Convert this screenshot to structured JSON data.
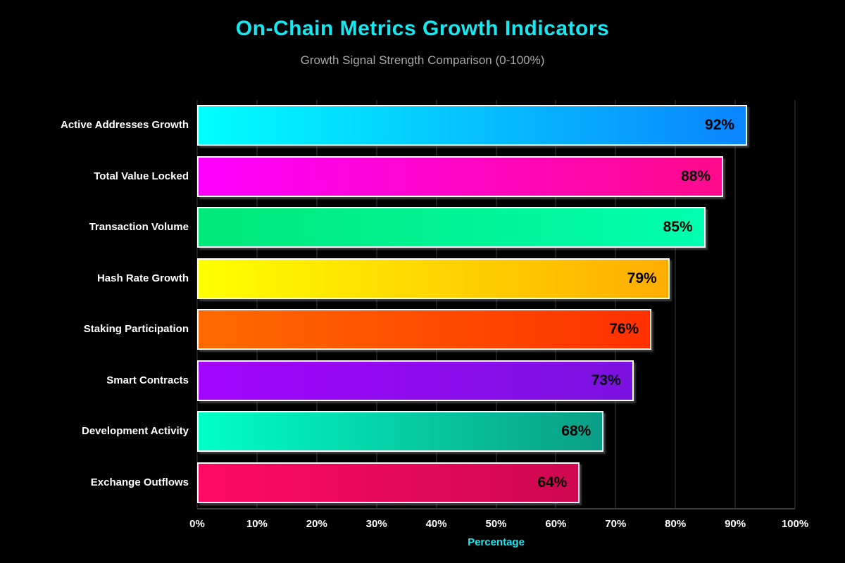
{
  "title": "On-Chain Metrics Growth Indicators",
  "subtitle": "Growth Signal Strength Comparison (0-100%)",
  "chart_data": {
    "type": "bar",
    "orientation": "horizontal",
    "title": "On-Chain Metrics Growth Indicators",
    "subtitle": "Growth Signal Strength Comparison (0-100%)",
    "categories": [
      "Active Addresses Growth",
      "Total Value Locked",
      "Transaction Volume",
      "Hash Rate Growth",
      "Staking Participation",
      "Smart Contracts",
      "Development Activity",
      "Exchange Outflows"
    ],
    "values": [
      92,
      88,
      85,
      79,
      76,
      73,
      68,
      64
    ],
    "value_labels": [
      "92%",
      "88%",
      "85%",
      "79%",
      "76%",
      "73%",
      "68%",
      "64%"
    ],
    "bar_gradients": [
      [
        "#00FFFF",
        "#0A84FF"
      ],
      [
        "#FF00FF",
        "#FF0A8C"
      ],
      [
        "#00E878",
        "#00FFB0"
      ],
      [
        "#FFFF00",
        "#FFAD00"
      ],
      [
        "#FF6A00",
        "#FF3000"
      ],
      [
        "#A305FD",
        "#7A11E0"
      ],
      [
        "#00FFC8",
        "#0A9E86"
      ],
      [
        "#FF0A64",
        "#CE0850"
      ]
    ],
    "xlabel": "Percentage",
    "x_ticks": [
      "0%",
      "10%",
      "20%",
      "30%",
      "40%",
      "50%",
      "60%",
      "70%",
      "80%",
      "90%",
      "100%"
    ],
    "xlim": [
      0,
      100
    ],
    "grid": "vertical-only",
    "legend": "none",
    "colors": {
      "background": "#000000",
      "title": "#16E8F2",
      "subtitle": "#A8A8A8",
      "xlabel": "#16E8F2",
      "tick_label": "#FFFFFF",
      "category_label": "#FFFFFF",
      "value_label": "#000000",
      "gridline": "#1E1E1E",
      "axis_line": "#3A3A3A",
      "bar_border": "#FFFFFF"
    }
  }
}
